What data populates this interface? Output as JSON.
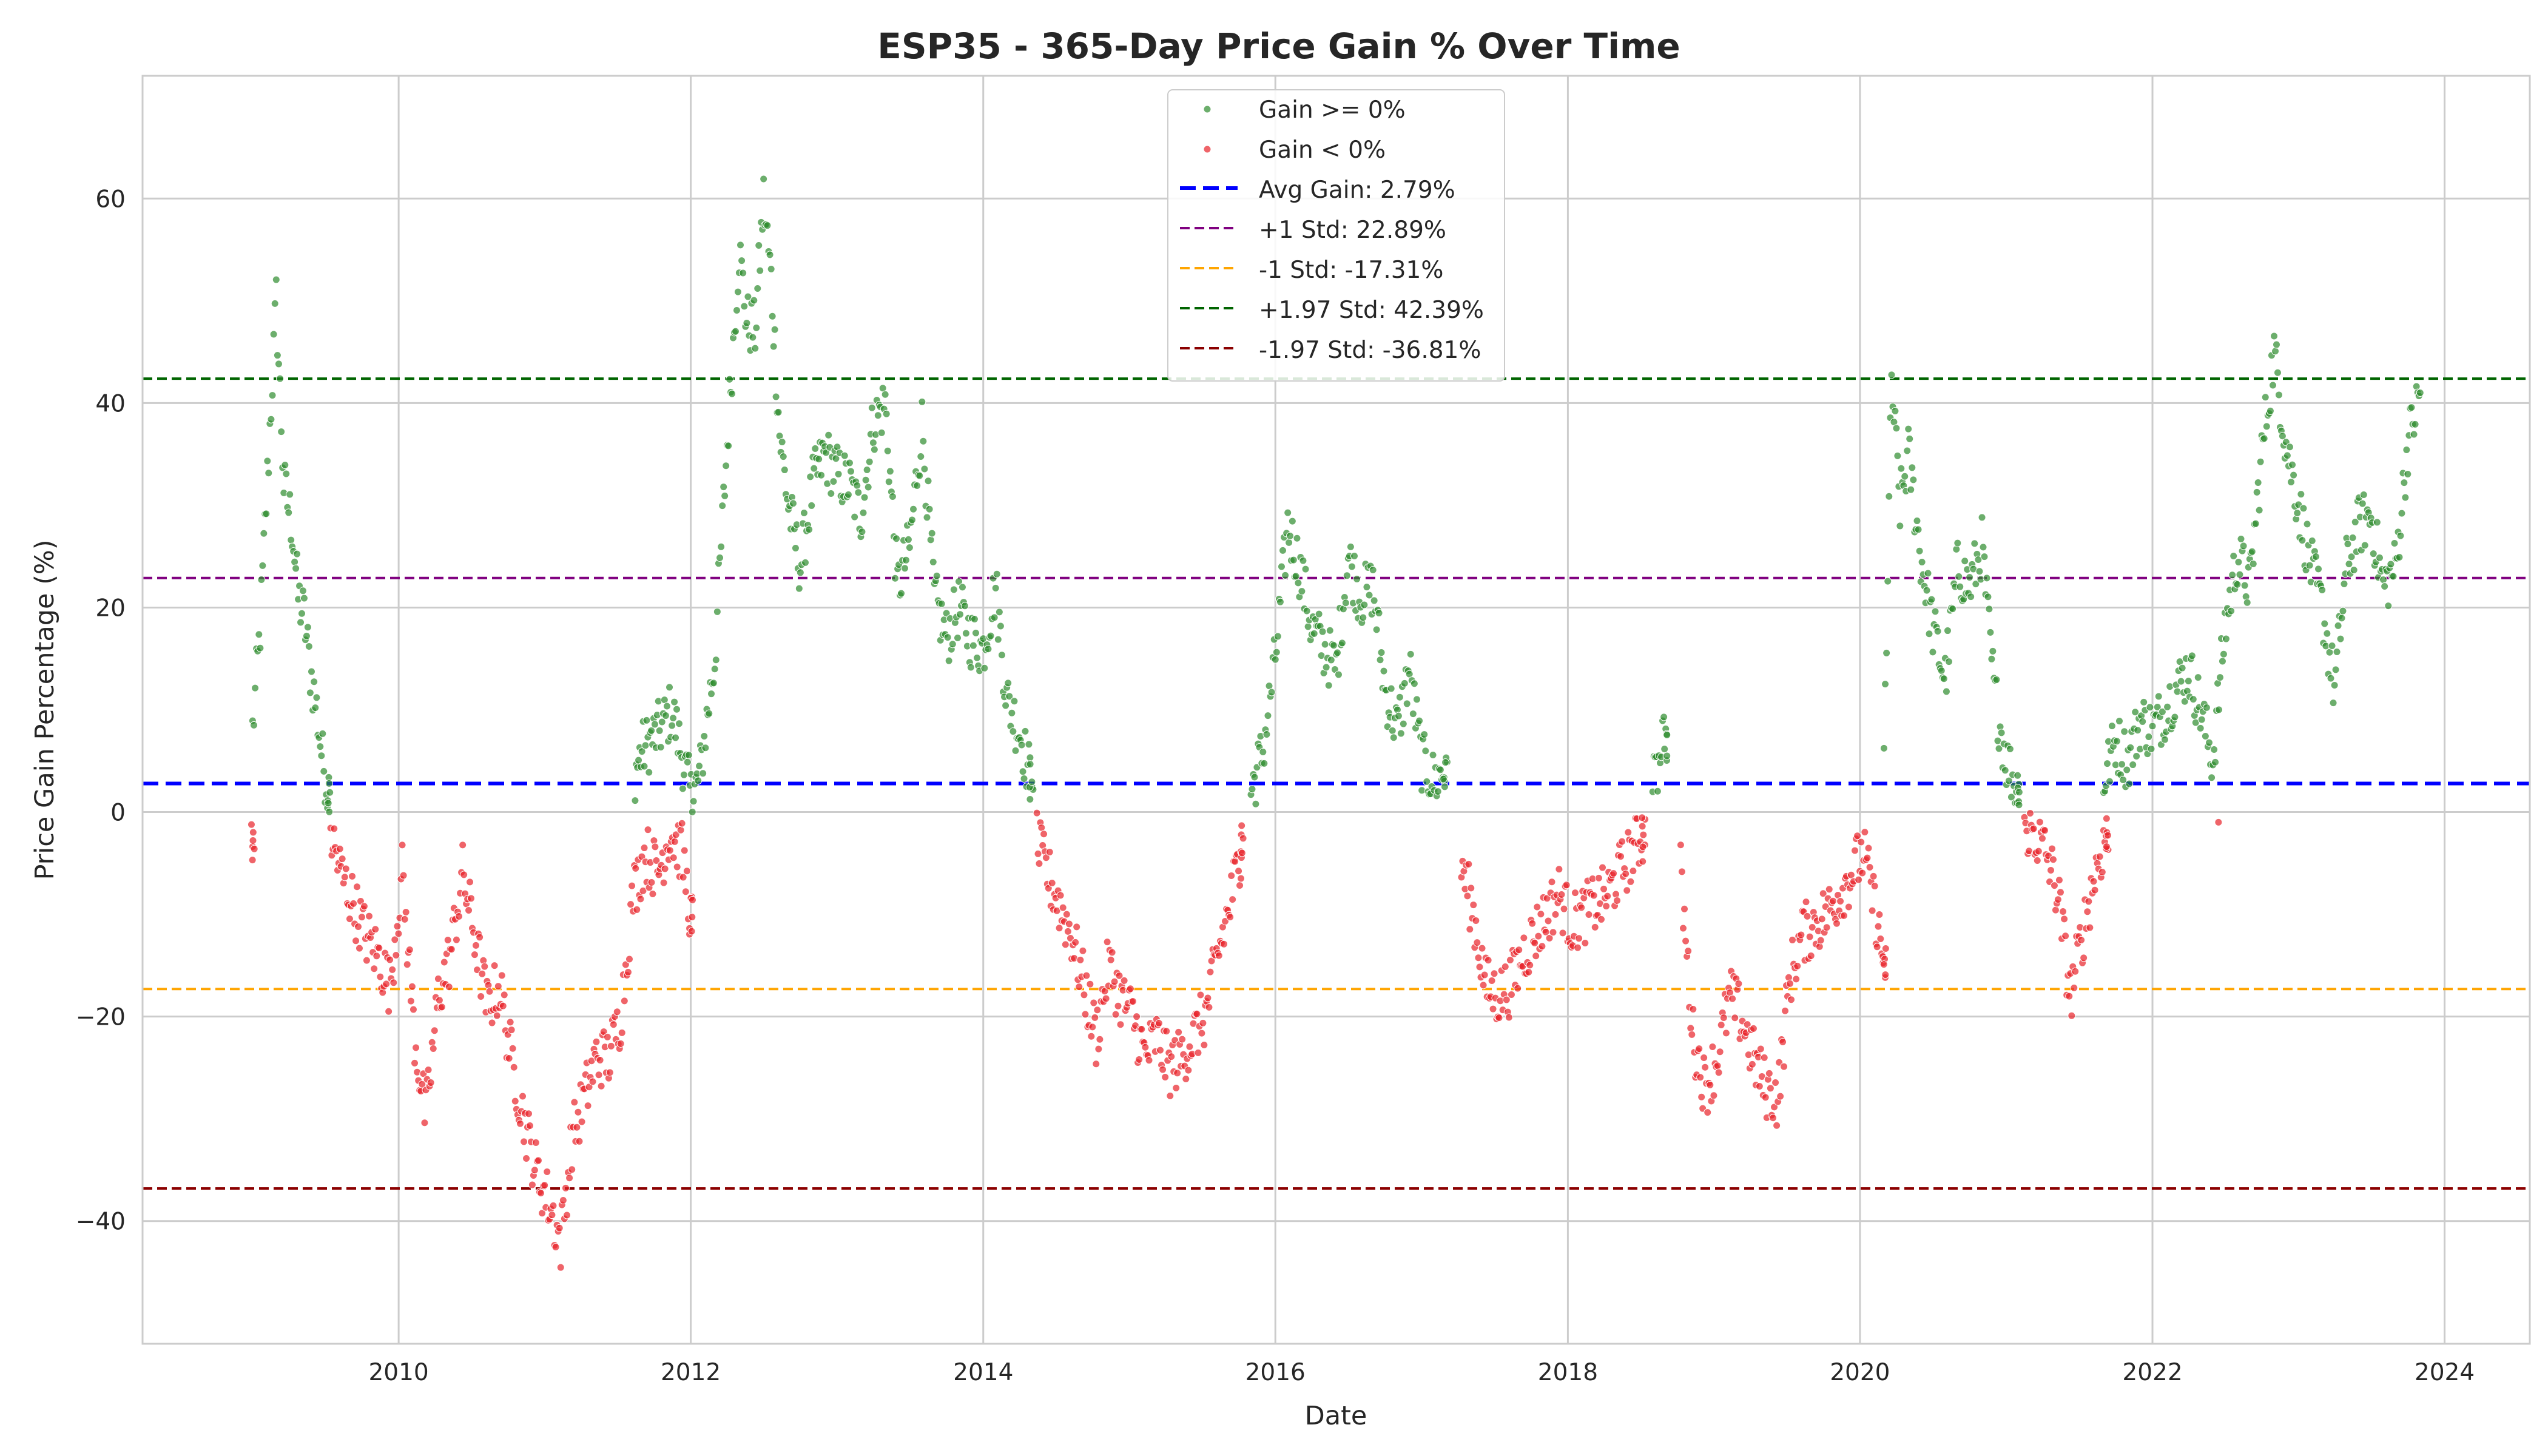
{
  "chart_data": {
    "type": "scatter",
    "title": "ESP35 - 365-Day Price Gain % Over Time",
    "xlabel": "Date",
    "ylabel": "Price Gain Percentage (%)",
    "xlim": [
      "2008-04-01",
      "2024-08-01"
    ],
    "ylim": [
      -52,
      72
    ],
    "x_ticks": [
      "2010",
      "2012",
      "2014",
      "2016",
      "2018",
      "2020",
      "2022",
      "2024"
    ],
    "y_ticks": [
      -40,
      -20,
      0,
      20,
      40,
      60
    ],
    "y_tick_labels": [
      "−40",
      "−20",
      "0",
      "20",
      "40",
      "60"
    ],
    "grid": true,
    "legend_position": "upper center",
    "series": [
      {
        "name": "Gain >= 0%",
        "color": "#2e8b2e",
        "condition": ">= 0",
        "points": [
          [
            "2009-01-01",
            8
          ],
          [
            "2009-01-20",
            18
          ],
          [
            "2009-02-10",
            35
          ],
          [
            "2009-03-01",
            50
          ],
          [
            "2009-03-20",
            32
          ],
          [
            "2009-04-10",
            28
          ],
          [
            "2009-04-25",
            21
          ],
          [
            "2009-05-10",
            19
          ],
          [
            "2009-05-25",
            14
          ],
          [
            "2009-06-10",
            10
          ],
          [
            "2009-06-25",
            5
          ],
          [
            "2009-07-10",
            2
          ],
          [
            "2011-08-15",
            4
          ],
          [
            "2011-09-01",
            6
          ],
          [
            "2011-10-15",
            8
          ],
          [
            "2011-11-15",
            10
          ],
          [
            "2012-01-05",
            1
          ],
          [
            "2012-01-25",
            4
          ],
          [
            "2012-02-10",
            9
          ],
          [
            "2012-03-01",
            15
          ],
          [
            "2012-03-20",
            28
          ],
          [
            "2012-04-10",
            42
          ],
          [
            "2012-05-01",
            55
          ],
          [
            "2012-05-20",
            48
          ],
          [
            "2012-06-10",
            47
          ],
          [
            "2012-07-01",
            60
          ],
          [
            "2012-07-20",
            52
          ],
          [
            "2012-08-10",
            37
          ],
          [
            "2012-09-01",
            30
          ],
          [
            "2012-10-01",
            24
          ],
          [
            "2012-11-01",
            32
          ],
          [
            "2012-12-01",
            35
          ],
          [
            "2013-01-01",
            33
          ],
          [
            "2013-02-01",
            32
          ],
          [
            "2013-03-01",
            29
          ],
          [
            "2013-04-01",
            38
          ],
          [
            "2013-05-01",
            40
          ],
          [
            "2013-06-01",
            22
          ],
          [
            "2013-07-01",
            26
          ],
          [
            "2013-08-01",
            38
          ],
          [
            "2013-09-01",
            21
          ],
          [
            "2013-10-01",
            17
          ],
          [
            "2013-11-01",
            20
          ],
          [
            "2013-12-01",
            17
          ],
          [
            "2014-01-01",
            16
          ],
          [
            "2014-02-01",
            22
          ],
          [
            "2014-03-01",
            11
          ],
          [
            "2014-04-01",
            8
          ],
          [
            "2014-05-01",
            3
          ],
          [
            "2015-11-01",
            2
          ],
          [
            "2015-12-01",
            6
          ],
          [
            "2016-01-01",
            15
          ],
          [
            "2016-02-01",
            28
          ],
          [
            "2016-03-01",
            24
          ],
          [
            "2016-04-01",
            18
          ],
          [
            "2016-05-01",
            16
          ],
          [
            "2016-06-01",
            14
          ],
          [
            "2016-07-01",
            25
          ],
          [
            "2016-08-01",
            21
          ],
          [
            "2016-09-01",
            22
          ],
          [
            "2016-10-01",
            12
          ],
          [
            "2016-11-01",
            8
          ],
          [
            "2016-12-01",
            14
          ],
          [
            "2017-01-01",
            5
          ],
          [
            "2017-02-01",
            3
          ],
          [
            "2017-03-01",
            4
          ],
          [
            "2018-08-01",
            2
          ],
          [
            "2018-09-01",
            7
          ],
          [
            "2020-03-01",
            5
          ],
          [
            "2020-03-20",
            42
          ],
          [
            "2020-04-10",
            30
          ],
          [
            "2020-05-01",
            35
          ],
          [
            "2020-06-01",
            25
          ],
          [
            "2020-07-01",
            18
          ],
          [
            "2020-08-01",
            13
          ],
          [
            "2020-09-01",
            24
          ],
          [
            "2020-10-01",
            22
          ],
          [
            "2020-11-01",
            26
          ],
          [
            "2020-12-01",
            12
          ],
          [
            "2021-01-01",
            5
          ],
          [
            "2021-02-01",
            2
          ],
          [
            "2021-09-01",
            3
          ],
          [
            "2021-10-01",
            7
          ],
          [
            "2021-11-01",
            5
          ],
          [
            "2021-12-01",
            9
          ],
          [
            "2022-01-01",
            8
          ],
          [
            "2022-02-01",
            10
          ],
          [
            "2022-03-01",
            12
          ],
          [
            "2022-04-01",
            14
          ],
          [
            "2022-05-01",
            10
          ],
          [
            "2022-06-01",
            5
          ],
          [
            "2022-07-01",
            18
          ],
          [
            "2022-08-01",
            25
          ],
          [
            "2022-09-01",
            22
          ],
          [
            "2022-10-01",
            35
          ],
          [
            "2022-11-01",
            45
          ],
          [
            "2022-12-01",
            36
          ],
          [
            "2023-01-01",
            30
          ],
          [
            "2023-02-01",
            24
          ],
          [
            "2023-03-01",
            20
          ],
          [
            "2023-04-01",
            12
          ],
          [
            "2023-05-01",
            24
          ],
          [
            "2023-06-01",
            28
          ],
          [
            "2023-07-01",
            29
          ],
          [
            "2023-08-01",
            22
          ],
          [
            "2023-09-01",
            24
          ],
          [
            "2023-10-01",
            36
          ],
          [
            "2023-11-01",
            41
          ]
        ]
      },
      {
        "name": "Gain < 0%",
        "color": "#e8222a",
        "condition": "< 0",
        "points": [
          [
            "2009-01-01",
            -3
          ],
          [
            "2009-07-15",
            -2
          ],
          [
            "2009-08-10",
            -6
          ],
          [
            "2009-09-10",
            -9
          ],
          [
            "2009-10-10",
            -12
          ],
          [
            "2009-11-10",
            -14
          ],
          [
            "2009-12-10",
            -17
          ],
          [
            "2010-01-10",
            -6
          ],
          [
            "2010-02-10",
            -22
          ],
          [
            "2010-03-10",
            -30
          ],
          [
            "2010-04-10",
            -18
          ],
          [
            "2010-05-10",
            -14
          ],
          [
            "2010-06-10",
            -6
          ],
          [
            "2010-07-10",
            -12
          ],
          [
            "2010-08-10",
            -19
          ],
          [
            "2010-09-10",
            -17
          ],
          [
            "2010-10-10",
            -24
          ],
          [
            "2010-11-10",
            -30
          ],
          [
            "2010-12-10",
            -35
          ],
          [
            "2011-01-10",
            -38
          ],
          [
            "2011-02-10",
            -42
          ],
          [
            "2011-03-10",
            -32
          ],
          [
            "2011-04-10",
            -28
          ],
          [
            "2011-05-10",
            -24
          ],
          [
            "2011-06-10",
            -24
          ],
          [
            "2011-07-10",
            -20
          ],
          [
            "2011-08-10",
            -8
          ],
          [
            "2011-09-10",
            -4
          ],
          [
            "2011-10-10",
            -6
          ],
          [
            "2011-11-10",
            -2
          ],
          [
            "2011-12-10",
            -4
          ],
          [
            "2012-01-01",
            -10
          ],
          [
            "2014-05-15",
            -3
          ],
          [
            "2014-06-10",
            -6
          ],
          [
            "2014-07-10",
            -9
          ],
          [
            "2014-08-10",
            -12
          ],
          [
            "2014-09-10",
            -17
          ],
          [
            "2014-10-10",
            -22
          ],
          [
            "2014-11-10",
            -15
          ],
          [
            "2014-12-10",
            -18
          ],
          [
            "2015-01-10",
            -20
          ],
          [
            "2015-02-10",
            -24
          ],
          [
            "2015-03-10",
            -22
          ],
          [
            "2015-04-10",
            -25
          ],
          [
            "2015-05-10",
            -24
          ],
          [
            "2015-06-10",
            -22
          ],
          [
            "2015-07-10",
            -20
          ],
          [
            "2015-08-10",
            -14
          ],
          [
            "2015-09-10",
            -9
          ],
          [
            "2015-10-10",
            -3
          ],
          [
            "2017-04-10",
            -5
          ],
          [
            "2017-05-10",
            -10
          ],
          [
            "2017-06-10",
            -17
          ],
          [
            "2017-07-10",
            -18
          ],
          [
            "2017-08-10",
            -17
          ],
          [
            "2017-09-10",
            -14
          ],
          [
            "2017-10-10",
            -12
          ],
          [
            "2017-11-10",
            -10
          ],
          [
            "2017-12-10",
            -8
          ],
          [
            "2018-01-10",
            -11
          ],
          [
            "2018-02-10",
            -10
          ],
          [
            "2018-03-10",
            -9
          ],
          [
            "2018-04-10",
            -8
          ],
          [
            "2018-05-10",
            -6
          ],
          [
            "2018-06-10",
            -4
          ],
          [
            "2018-07-10",
            -2
          ],
          [
            "2018-10-10",
            -6
          ],
          [
            "2018-11-10",
            -22
          ],
          [
            "2018-12-10",
            -27
          ],
          [
            "2019-01-10",
            -24
          ],
          [
            "2019-02-10",
            -18
          ],
          [
            "2019-03-10",
            -20
          ],
          [
            "2019-04-10",
            -24
          ],
          [
            "2019-05-10",
            -27
          ],
          [
            "2019-06-10",
            -28
          ],
          [
            "2019-07-10",
            -16
          ],
          [
            "2019-08-10",
            -12
          ],
          [
            "2019-09-10",
            -11
          ],
          [
            "2019-10-10",
            -10
          ],
          [
            "2019-11-10",
            -8
          ],
          [
            "2019-12-10",
            -6
          ],
          [
            "2020-01-10",
            -4
          ],
          [
            "2020-02-10",
            -10
          ],
          [
            "2020-03-01",
            -15
          ],
          [
            "2021-02-15",
            -1
          ],
          [
            "2021-03-10",
            -2
          ],
          [
            "2021-04-10",
            -4
          ],
          [
            "2021-05-10",
            -8
          ],
          [
            "2021-06-10",
            -18
          ],
          [
            "2021-07-10",
            -12
          ],
          [
            "2021-08-10",
            -6
          ],
          [
            "2021-09-10",
            -2
          ],
          [
            "2022-06-15",
            -1
          ]
        ]
      }
    ],
    "reference_lines": [
      {
        "label": "Avg Gain: 2.79%",
        "value": 2.79,
        "color": "#0000ff"
      },
      {
        "label": "+1 Std: 22.89%",
        "value": 22.89,
        "color": "#800080"
      },
      {
        "label": "-1 Std: -17.31%",
        "value": -17.31,
        "color": "#ffa500"
      },
      {
        "label": "+1.97 Std: 42.39%",
        "value": 42.39,
        "color": "#006400"
      },
      {
        "label": "-1.97 Std: -36.81%",
        "value": -36.81,
        "color": "#8b0000"
      }
    ]
  }
}
